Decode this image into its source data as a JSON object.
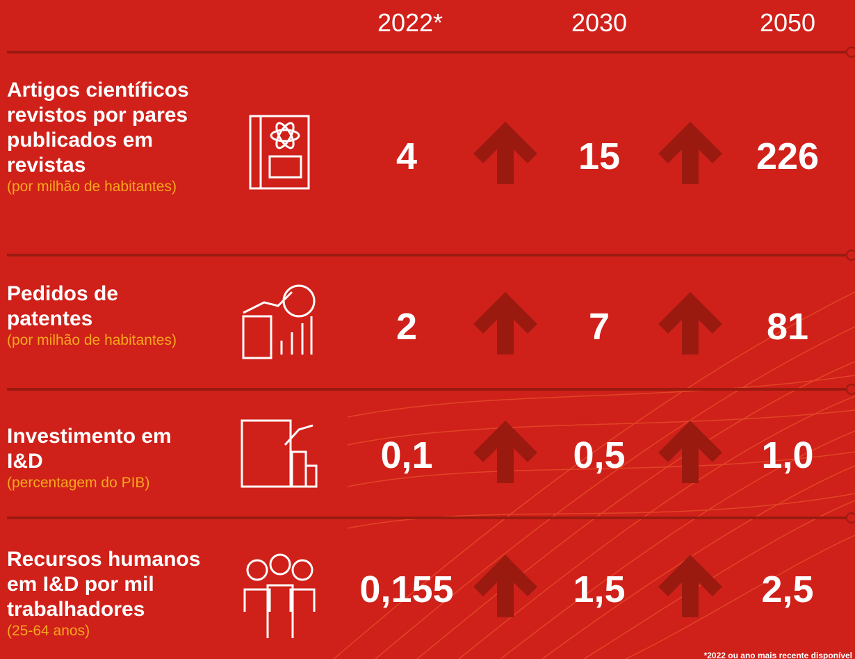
{
  "header": {
    "years": [
      "2022*",
      "2030",
      "2050"
    ]
  },
  "rows": [
    {
      "label": "Artigos científicos revistos por pares publicados em revistas",
      "unit": "(por milhão de habitantes)",
      "values": [
        "4",
        "15",
        "226"
      ]
    },
    {
      "label": "Pedidos de patentes",
      "unit": "(por milhão de habitantes)",
      "values": [
        "2",
        "7",
        "81"
      ]
    },
    {
      "label": "Investimento em I&D",
      "unit": "(percentagem do PIB)",
      "values": [
        "0,1",
        "0,5",
        "1,0"
      ]
    },
    {
      "label": "Recursos humanos em I&D por mil trabalhadores",
      "unit": "(25-64 anos)",
      "values": [
        "0,155",
        "1,5",
        "2,5"
      ]
    }
  ],
  "footnote": "*2022 ou ano mais recente disponível"
}
